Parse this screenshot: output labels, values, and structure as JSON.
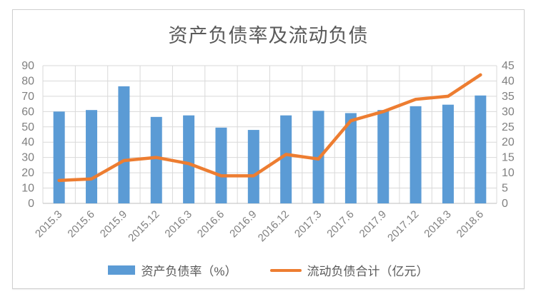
{
  "chart_data": {
    "type": "bar",
    "subtype": "combo-bar-line-dual-axis",
    "title": "资产负债率及流动负债",
    "categories": [
      "2015.3",
      "2015.6",
      "2015.9",
      "2015.12",
      "2016.3",
      "2016.6",
      "2016.9",
      "2016.12",
      "2017.3",
      "2017.6",
      "2017.9",
      "2017.12",
      "2018.3",
      "2018.6"
    ],
    "series": [
      {
        "name": "资产负债率（%）",
        "type": "bar",
        "axis": "left",
        "color": "#5B9BD5",
        "values": [
          60,
          61,
          76.5,
          56.5,
          57.5,
          49.5,
          48,
          57.5,
          60.5,
          59,
          61,
          63.5,
          64.5,
          70.5
        ]
      },
      {
        "name": "流动负债合计（亿元）",
        "type": "line",
        "axis": "right",
        "color": "#ED7D31",
        "values": [
          7.5,
          8,
          14,
          15,
          13,
          9,
          9,
          16,
          14.5,
          27,
          30,
          34,
          35,
          42
        ]
      }
    ],
    "left_axis": {
      "min": 0,
      "max": 90,
      "step": 10
    },
    "right_axis": {
      "min": 0,
      "max": 45,
      "step": 5
    },
    "grid": "horizontal and vertical gridlines on",
    "legend_position": "bottom-center",
    "colors": {
      "bar": "#5B9BD5",
      "line": "#ED7D31",
      "gridline": "#d9d9d9",
      "axis_line": "#bfbfbf",
      "tick_label": "#808080",
      "title_text": "#595959",
      "card_border": "#cfcfcf"
    }
  }
}
